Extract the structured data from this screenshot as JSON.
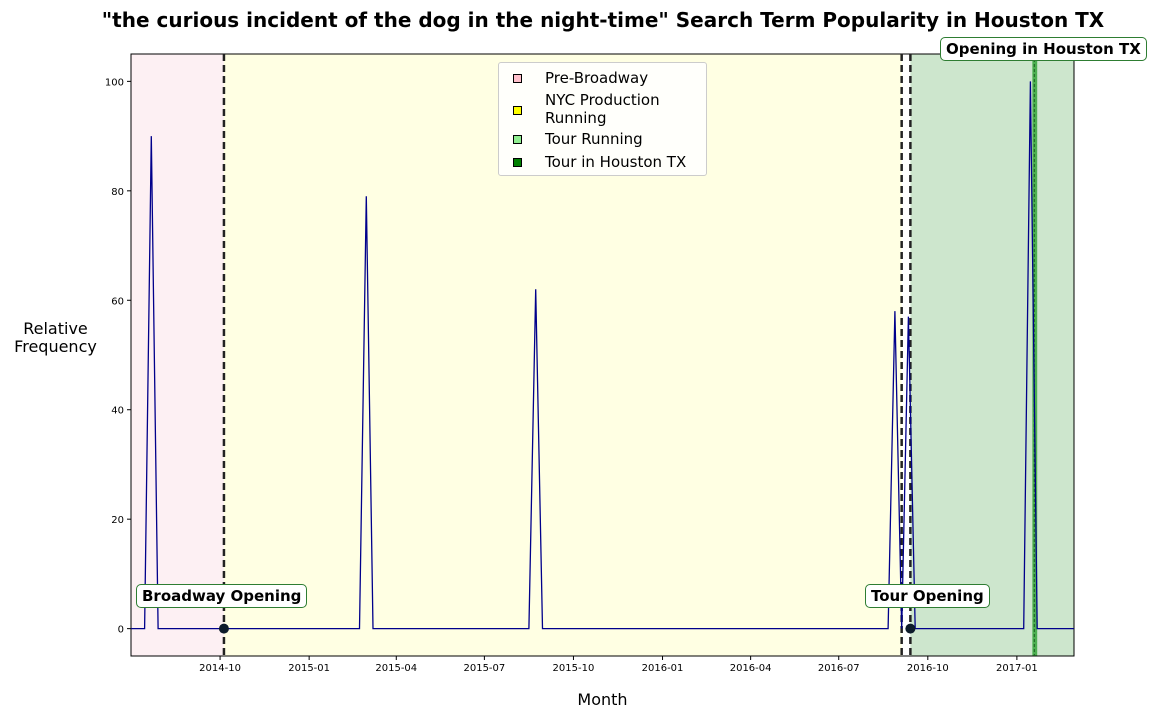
{
  "chart_data": {
    "type": "line",
    "title": "\"the curious incident of the dog in the night-time\" Search Term Popularity in Houston TX",
    "xlabel": "Month",
    "ylabel": "Relative\nFrequency",
    "ylim": [
      -5,
      105
    ],
    "xlim": [
      "2014-07-01",
      "2017-03-01"
    ],
    "yticks": [
      0,
      20,
      40,
      60,
      80,
      100
    ],
    "xticks": [
      "2014-10",
      "2015-01",
      "2015-04",
      "2015-07",
      "2015-10",
      "2016-01",
      "2016-04",
      "2016-07",
      "2016-10",
      "2017-01"
    ],
    "grid": false,
    "legend_position": "top-center",
    "series": [
      {
        "color": "#00008b",
        "x": [
          "2014-07-01",
          "2014-07-15",
          "2014-07-22",
          "2014-07-29",
          "2014-10-06",
          "2015-02-22",
          "2015-03-01",
          "2015-03-08",
          "2015-08-16",
          "2015-08-23",
          "2015-08-30",
          "2016-08-21",
          "2016-08-28",
          "2016-09-04",
          "2016-09-11",
          "2016-09-18",
          "2017-01-08",
          "2017-01-15",
          "2017-01-22",
          "2017-03-01"
        ],
        "values": [
          0,
          0,
          90,
          0,
          0,
          0,
          79,
          0,
          0,
          62,
          0,
          0,
          58,
          0,
          57,
          0,
          0,
          100,
          0,
          0
        ]
      }
    ],
    "regions": [
      {
        "label": "Pre-Broadway",
        "start": "2014-07-01",
        "end": "2014-10-05",
        "color": "#fdf0f3"
      },
      {
        "label": "NYC Production\nRunning",
        "start": "2014-10-05",
        "end": "2016-09-04",
        "color": "#ffffe3"
      },
      {
        "label": "Tour Running",
        "start": "2016-09-13",
        "end": "2017-03-01",
        "color": "#cde6cd"
      },
      {
        "label": "Tour in Houston TX",
        "start": "2017-01-17",
        "end": "2017-01-22",
        "color": "#4caf50"
      }
    ],
    "legend": [
      {
        "label": "Pre-Broadway",
        "color": "#ffc0cb"
      },
      {
        "label": "NYC Production\nRunning",
        "color": "#ffff00"
      },
      {
        "label": "Tour Running",
        "color": "#90ee90"
      },
      {
        "label": "Tour in Houston TX",
        "color": "#008000"
      }
    ],
    "events": [
      {
        "label": "Broadway Opening",
        "date": "2014-10-05",
        "marker": true
      },
      {
        "label": "",
        "date": "2016-09-04",
        "marker": false
      },
      {
        "label": "Tour Opening",
        "date": "2016-09-13",
        "marker": true
      },
      {
        "label": "Opening in Houston TX",
        "date": "2017-01-19",
        "marker": false
      }
    ]
  }
}
